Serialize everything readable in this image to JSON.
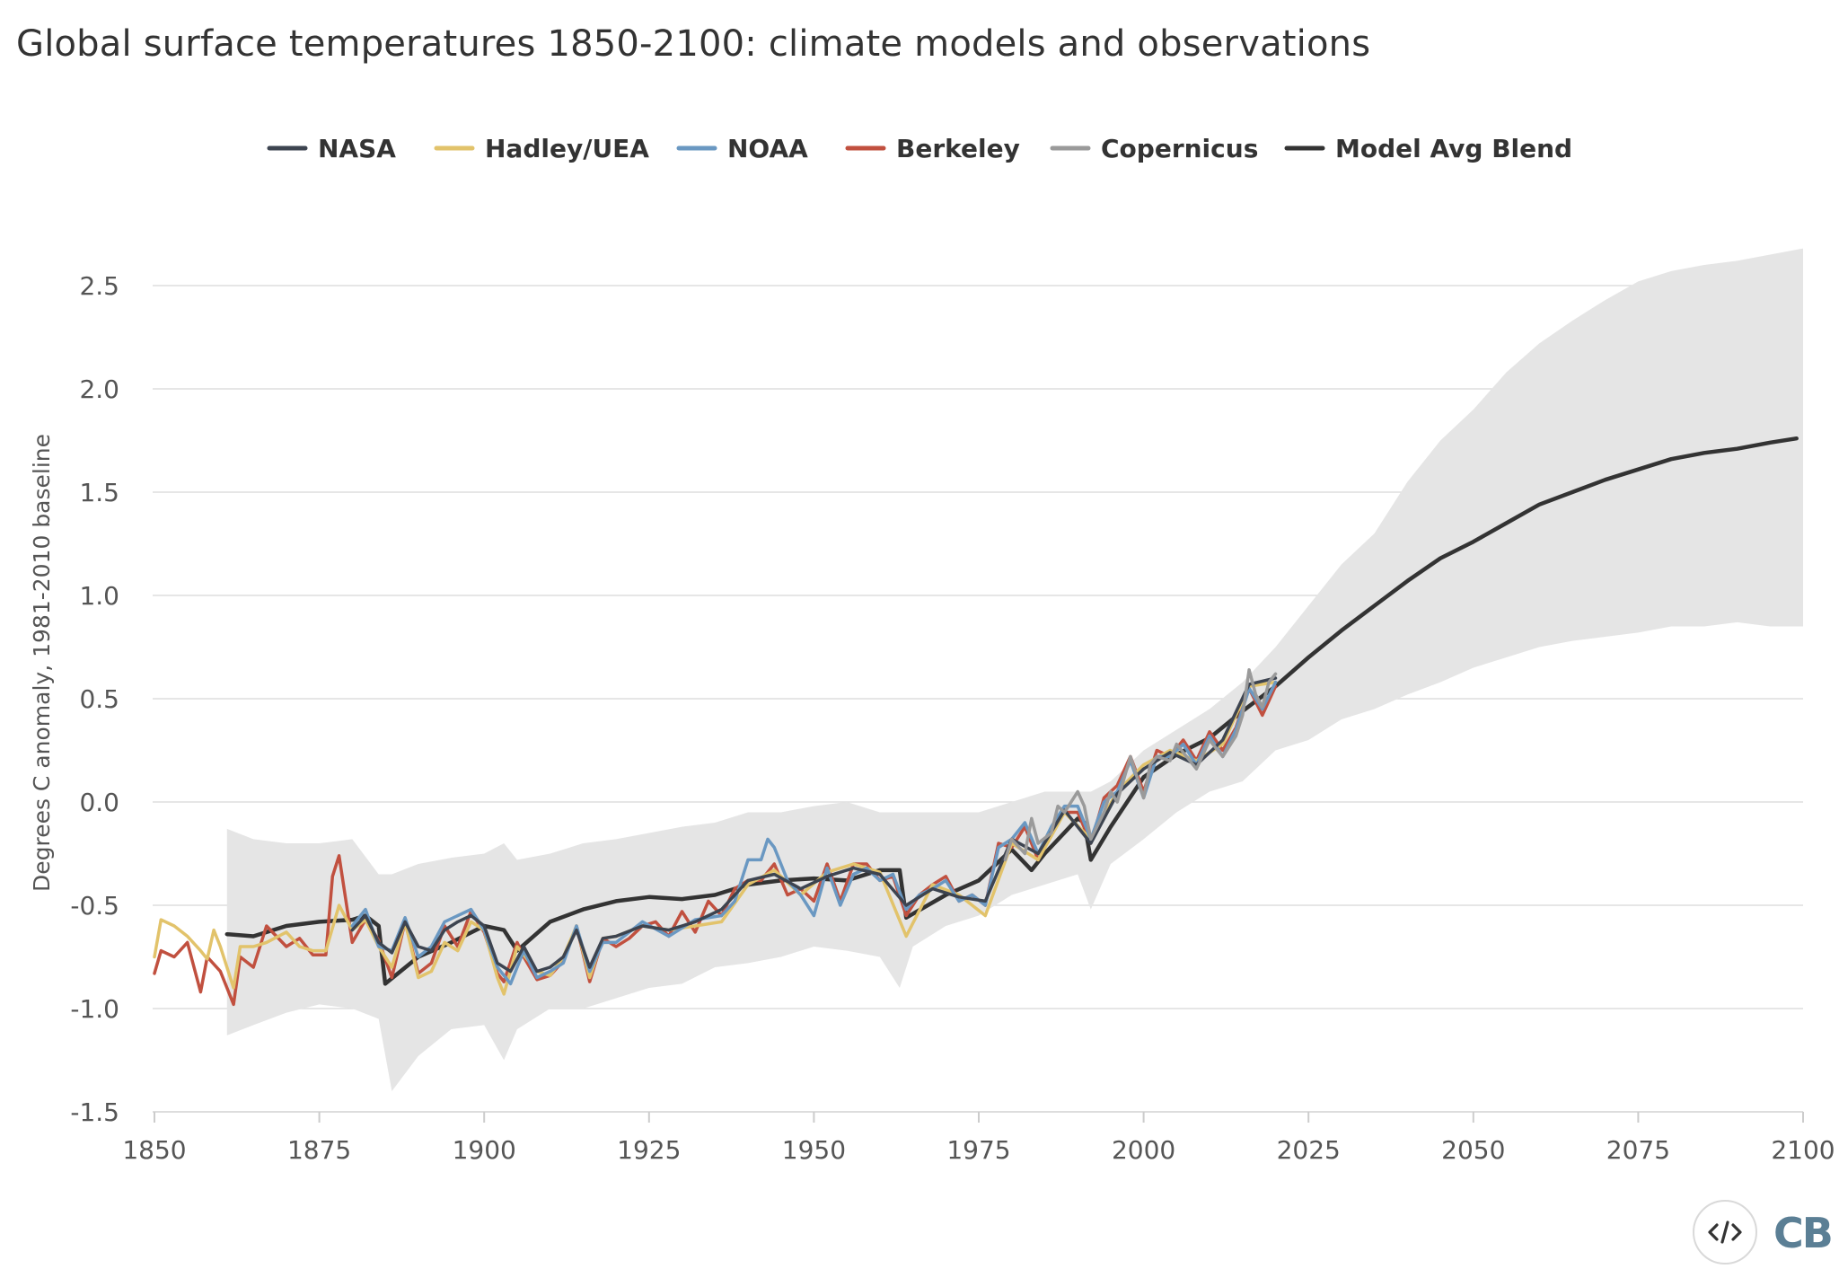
{
  "title": "Global surface temperatures 1850-2100: climate models and observations",
  "logo_text": "CB",
  "icons": {
    "embed": "code-embed-icon"
  },
  "colors": {
    "NASA": "#3d4450",
    "Hadley/UEA": "#e2c36b",
    "NOAA": "#6a98c2",
    "Berkeley": "#c1503f",
    "Copernicus": "#9a9a9a",
    "Model Avg Blend": "#333333",
    "range": "#e5e5e5",
    "grid": "#dddddd"
  },
  "chart_data": {
    "type": "line",
    "title": "Global surface temperatures 1850-2100: climate models and observations",
    "xlabel": "",
    "ylabel": "Degrees C anomaly, 1981-2010 baseline",
    "xlim": [
      1850,
      2100
    ],
    "ylim": [
      -1.5,
      2.6
    ],
    "x_ticks": [
      1850,
      1875,
      1900,
      1925,
      1950,
      1975,
      2000,
      2025,
      2050,
      2075,
      2100
    ],
    "y_ticks": [
      {
        "value": -1.5,
        "label": "-1.5"
      },
      {
        "value": -1.0,
        "label": "-1.0"
      },
      {
        "value": -0.5,
        "label": "-0.5"
      },
      {
        "value": 0.0,
        "label": "0.0"
      },
      {
        "value": 0.5,
        "label": "0.5"
      },
      {
        "value": 1.0,
        "label": "1.0"
      },
      {
        "value": 1.5,
        "label": "1.5"
      },
      {
        "value": 2.0,
        "label": "2.0"
      },
      {
        "value": 2.5,
        "label": "2.5"
      }
    ],
    "grid": true,
    "legend_position": "top-center",
    "legend": [
      "NASA",
      "Hadley/UEA",
      "NOAA",
      "Berkeley",
      "Copernicus",
      "Model Avg Blend"
    ],
    "model_range": {
      "x": [
        1861,
        1865,
        1870,
        1875,
        1880,
        1884,
        1886,
        1890,
        1895,
        1900,
        1903,
        1905,
        1910,
        1915,
        1920,
        1925,
        1930,
        1935,
        1940,
        1945,
        1950,
        1955,
        1960,
        1963,
        1965,
        1970,
        1975,
        1980,
        1985,
        1990,
        1992,
        1995,
        2000,
        2005,
        2010,
        2015,
        2020,
        2025,
        2030,
        2035,
        2040,
        2045,
        2050,
        2055,
        2060,
        2065,
        2070,
        2075,
        2080,
        2085,
        2090,
        2095,
        2100
      ],
      "lower": [
        -1.13,
        -1.08,
        -1.02,
        -0.98,
        -1.0,
        -1.05,
        -1.4,
        -1.23,
        -1.1,
        -1.08,
        -1.25,
        -1.1,
        -1.0,
        -1.0,
        -0.95,
        -0.9,
        -0.88,
        -0.8,
        -0.78,
        -0.75,
        -0.7,
        -0.72,
        -0.75,
        -0.9,
        -0.7,
        -0.6,
        -0.55,
        -0.45,
        -0.4,
        -0.35,
        -0.52,
        -0.3,
        -0.18,
        -0.05,
        0.05,
        0.1,
        0.25,
        0.3,
        0.4,
        0.45,
        0.52,
        0.58,
        0.65,
        0.7,
        0.75,
        0.78,
        0.8,
        0.82,
        0.85,
        0.85,
        0.87,
        0.85,
        0.85
      ],
      "upper": [
        -0.13,
        -0.18,
        -0.2,
        -0.2,
        -0.18,
        -0.35,
        -0.35,
        -0.3,
        -0.27,
        -0.25,
        -0.2,
        -0.28,
        -0.25,
        -0.2,
        -0.18,
        -0.15,
        -0.12,
        -0.1,
        -0.05,
        -0.05,
        -0.02,
        0.0,
        -0.05,
        -0.05,
        -0.05,
        -0.05,
        -0.05,
        0.0,
        0.05,
        0.05,
        0.05,
        0.1,
        0.25,
        0.35,
        0.45,
        0.58,
        0.75,
        0.95,
        1.15,
        1.3,
        1.55,
        1.75,
        1.9,
        2.08,
        2.22,
        2.33,
        2.43,
        2.52,
        2.57,
        2.6,
        2.62,
        2.65,
        2.68
      ]
    },
    "series": [
      {
        "name": "Model Avg Blend",
        "x": [
          1861,
          1865,
          1870,
          1875,
          1880,
          1882,
          1884,
          1885,
          1890,
          1895,
          1900,
          1903,
          1905,
          1910,
          1915,
          1920,
          1925,
          1930,
          1935,
          1940,
          1945,
          1950,
          1955,
          1960,
          1963,
          1964,
          1970,
          1975,
          1980,
          1983,
          1985,
          1990,
          1991,
          1992,
          1995,
          2000,
          2005,
          2010,
          2015,
          2020,
          2025,
          2030,
          2035,
          2040,
          2045,
          2050,
          2055,
          2060,
          2065,
          2070,
          2075,
          2080,
          2085,
          2090,
          2095,
          2099
        ],
        "y": [
          -0.64,
          -0.65,
          -0.6,
          -0.58,
          -0.57,
          -0.55,
          -0.6,
          -0.88,
          -0.75,
          -0.68,
          -0.6,
          -0.62,
          -0.72,
          -0.58,
          -0.52,
          -0.48,
          -0.46,
          -0.47,
          -0.45,
          -0.4,
          -0.38,
          -0.37,
          -0.38,
          -0.33,
          -0.33,
          -0.56,
          -0.45,
          -0.38,
          -0.23,
          -0.33,
          -0.25,
          -0.08,
          -0.1,
          -0.28,
          -0.12,
          0.12,
          0.23,
          0.31,
          0.44,
          0.56,
          0.7,
          0.83,
          0.95,
          1.07,
          1.18,
          1.26,
          1.35,
          1.44,
          1.5,
          1.56,
          1.61,
          1.66,
          1.69,
          1.71,
          1.74,
          1.76
        ]
      },
      {
        "name": "Berkeley",
        "x": [
          1850,
          1851,
          1853,
          1855,
          1857,
          1858,
          1860,
          1861,
          1862,
          1863,
          1865,
          1867,
          1870,
          1872,
          1874,
          1876,
          1877,
          1878,
          1880,
          1882,
          1884,
          1886,
          1888,
          1890,
          1892,
          1894,
          1896,
          1898,
          1900,
          1902,
          1903,
          1905,
          1906,
          1908,
          1910,
          1912,
          1914,
          1916,
          1918,
          1920,
          1922,
          1924,
          1926,
          1928,
          1930,
          1932,
          1934,
          1936,
          1938,
          1940,
          1942,
          1944,
          1946,
          1948,
          1950,
          1952,
          1954,
          1956,
          1958,
          1960,
          1962,
          1964,
          1966,
          1968,
          1970,
          1972,
          1974,
          1976,
          1978,
          1980,
          1982,
          1984,
          1986,
          1988,
          1990,
          1992,
          1994,
          1996,
          1998,
          2000,
          2002,
          2004,
          2006,
          2008,
          2010,
          2012,
          2014,
          2016,
          2018,
          2020
        ],
        "y": [
          -0.83,
          -0.72,
          -0.75,
          -0.68,
          -0.92,
          -0.75,
          -0.82,
          -0.9,
          -0.98,
          -0.75,
          -0.8,
          -0.6,
          -0.7,
          -0.66,
          -0.74,
          -0.74,
          -0.36,
          -0.26,
          -0.68,
          -0.57,
          -0.67,
          -0.85,
          -0.58,
          -0.83,
          -0.78,
          -0.6,
          -0.7,
          -0.53,
          -0.63,
          -0.83,
          -0.87,
          -0.68,
          -0.75,
          -0.86,
          -0.84,
          -0.77,
          -0.6,
          -0.87,
          -0.66,
          -0.7,
          -0.66,
          -0.6,
          -0.58,
          -0.65,
          -0.53,
          -0.63,
          -0.48,
          -0.55,
          -0.42,
          -0.38,
          -0.38,
          -0.3,
          -0.45,
          -0.42,
          -0.48,
          -0.3,
          -0.48,
          -0.3,
          -0.3,
          -0.38,
          -0.36,
          -0.55,
          -0.45,
          -0.4,
          -0.36,
          -0.48,
          -0.45,
          -0.5,
          -0.2,
          -0.22,
          -0.12,
          -0.28,
          -0.15,
          -0.05,
          -0.05,
          -0.2,
          0.02,
          0.08,
          0.22,
          0.05,
          0.25,
          0.22,
          0.3,
          0.2,
          0.34,
          0.25,
          0.36,
          0.55,
          0.42,
          0.56
        ]
      },
      {
        "name": "Hadley/UEA",
        "x": [
          1850,
          1851,
          1853,
          1855,
          1857,
          1858,
          1859,
          1860,
          1862,
          1863,
          1865,
          1867,
          1870,
          1872,
          1874,
          1876,
          1878,
          1880,
          1882,
          1884,
          1886,
          1888,
          1890,
          1892,
          1894,
          1896,
          1898,
          1900,
          1902,
          1903,
          1905,
          1908,
          1910,
          1912,
          1914,
          1916,
          1918,
          1920,
          1924,
          1928,
          1932,
          1936,
          1940,
          1944,
          1948,
          1952,
          1956,
          1960,
          1964,
          1968,
          1972,
          1976,
          1980,
          1984,
          1988,
          1992,
          1996,
          2000,
          2004,
          2008,
          2012,
          2016,
          2020
        ],
        "y": [
          -0.75,
          -0.57,
          -0.6,
          -0.65,
          -0.72,
          -0.76,
          -0.62,
          -0.7,
          -0.9,
          -0.7,
          -0.7,
          -0.68,
          -0.63,
          -0.7,
          -0.72,
          -0.72,
          -0.5,
          -0.62,
          -0.57,
          -0.7,
          -0.8,
          -0.58,
          -0.85,
          -0.82,
          -0.68,
          -0.72,
          -0.58,
          -0.62,
          -0.85,
          -0.93,
          -0.7,
          -0.82,
          -0.84,
          -0.75,
          -0.6,
          -0.85,
          -0.66,
          -0.65,
          -0.6,
          -0.62,
          -0.6,
          -0.58,
          -0.4,
          -0.33,
          -0.45,
          -0.34,
          -0.3,
          -0.34,
          -0.65,
          -0.4,
          -0.45,
          -0.55,
          -0.2,
          -0.28,
          -0.05,
          -0.18,
          0.05,
          0.18,
          0.25,
          0.2,
          0.28,
          0.56,
          0.58
        ]
      },
      {
        "name": "NOAA",
        "x": [
          1880,
          1882,
          1884,
          1886,
          1888,
          1890,
          1892,
          1894,
          1896,
          1898,
          1900,
          1902,
          1904,
          1906,
          1908,
          1910,
          1912,
          1914,
          1916,
          1918,
          1920,
          1924,
          1928,
          1932,
          1936,
          1938,
          1940,
          1942,
          1943,
          1944,
          1946,
          1948,
          1950,
          1952,
          1954,
          1956,
          1958,
          1960,
          1962,
          1964,
          1966,
          1968,
          1970,
          1972,
          1974,
          1976,
          1978,
          1980,
          1982,
          1984,
          1986,
          1988,
          1990,
          1992,
          1994,
          1996,
          1998,
          2000,
          2002,
          2004,
          2006,
          2008,
          2010,
          2012,
          2014,
          2016,
          2018,
          2020
        ],
        "y": [
          -0.6,
          -0.52,
          -0.7,
          -0.72,
          -0.56,
          -0.75,
          -0.7,
          -0.58,
          -0.55,
          -0.52,
          -0.62,
          -0.8,
          -0.88,
          -0.72,
          -0.85,
          -0.82,
          -0.78,
          -0.6,
          -0.82,
          -0.68,
          -0.68,
          -0.58,
          -0.65,
          -0.57,
          -0.55,
          -0.48,
          -0.28,
          -0.28,
          -0.18,
          -0.22,
          -0.38,
          -0.45,
          -0.55,
          -0.32,
          -0.5,
          -0.35,
          -0.32,
          -0.38,
          -0.35,
          -0.52,
          -0.45,
          -0.42,
          -0.38,
          -0.48,
          -0.45,
          -0.5,
          -0.22,
          -0.18,
          -0.1,
          -0.25,
          -0.12,
          -0.02,
          -0.02,
          -0.18,
          0.0,
          0.05,
          0.2,
          0.02,
          0.22,
          0.22,
          0.28,
          0.18,
          0.32,
          0.22,
          0.35,
          0.55,
          0.45,
          0.58
        ]
      },
      {
        "name": "NASA",
        "x": [
          1880,
          1882,
          1884,
          1886,
          1888,
          1890,
          1892,
          1894,
          1896,
          1898,
          1900,
          1902,
          1904,
          1906,
          1908,
          1910,
          1912,
          1914,
          1916,
          1918,
          1920,
          1924,
          1928,
          1932,
          1936,
          1940,
          1944,
          1948,
          1952,
          1956,
          1960,
          1964,
          1968,
          1972,
          1976,
          1980,
          1984,
          1988,
          1992,
          1996,
          2000,
          2004,
          2008,
          2012,
          2016,
          2020
        ],
        "y": [
          -0.62,
          -0.55,
          -0.68,
          -0.73,
          -0.58,
          -0.7,
          -0.72,
          -0.62,
          -0.58,
          -0.55,
          -0.6,
          -0.78,
          -0.82,
          -0.7,
          -0.82,
          -0.8,
          -0.75,
          -0.62,
          -0.8,
          -0.66,
          -0.65,
          -0.6,
          -0.62,
          -0.58,
          -0.52,
          -0.38,
          -0.35,
          -0.42,
          -0.36,
          -0.32,
          -0.35,
          -0.5,
          -0.42,
          -0.46,
          -0.48,
          -0.18,
          -0.25,
          -0.04,
          -0.2,
          0.04,
          0.16,
          0.24,
          0.18,
          0.3,
          0.57,
          0.6
        ]
      },
      {
        "name": "Copernicus",
        "x": [
          1979,
          1980,
          1982,
          1983,
          1984,
          1986,
          1987,
          1988,
          1990,
          1991,
          1992,
          1994,
          1995,
          1996,
          1998,
          2000,
          2001,
          2002,
          2004,
          2005,
          2006,
          2008,
          2010,
          2012,
          2014,
          2015,
          2016,
          2017,
          2018,
          2019,
          2020
        ],
        "y": [
          -0.28,
          -0.18,
          -0.25,
          -0.08,
          -0.2,
          -0.15,
          -0.02,
          -0.05,
          0.05,
          -0.02,
          -0.18,
          -0.05,
          0.05,
          0.0,
          0.22,
          0.02,
          0.18,
          0.22,
          0.2,
          0.28,
          0.24,
          0.16,
          0.3,
          0.22,
          0.32,
          0.42,
          0.64,
          0.52,
          0.46,
          0.58,
          0.62
        ]
      }
    ]
  }
}
